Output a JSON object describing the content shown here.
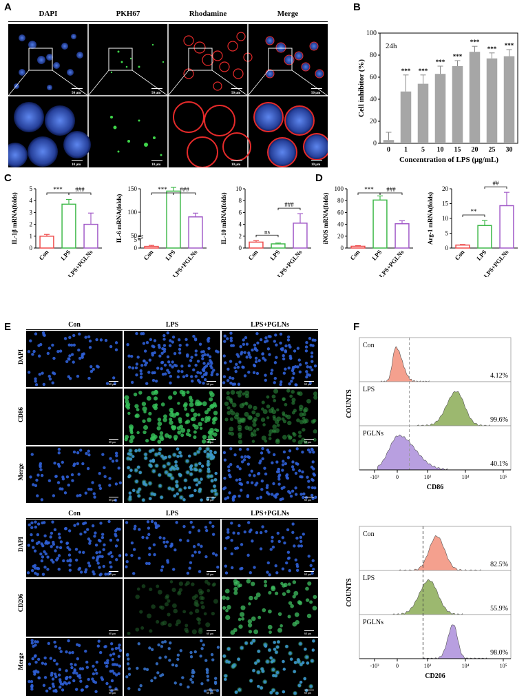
{
  "panels": {
    "A": "A",
    "B": "B",
    "C": "C",
    "D": "D",
    "E": "E",
    "F": "F"
  },
  "panel_a": {
    "columns": [
      "DAPI",
      "PKH67",
      "Rhodamine",
      "Merge"
    ],
    "scale_top": "50 μm",
    "scale_bottom": "10 μm"
  },
  "panel_e": {
    "columns": [
      "Con",
      "LPS",
      "LPS+PGLNs"
    ],
    "rows_top": [
      "DAPI",
      "CD86",
      "Merge"
    ],
    "rows_bottom": [
      "DAPI",
      "CD206",
      "Merge"
    ],
    "scale": "60 μm"
  },
  "panel_f": {
    "ylabel": "COUNTS",
    "cd86": {
      "xlabel": "CD86",
      "samples": [
        {
          "name": "Con",
          "pct": "4.12%",
          "color": "#f4a08e"
        },
        {
          "name": "LPS",
          "pct": "99.6%",
          "color": "#9cb86f"
        },
        {
          "name": "PGLNs",
          "pct": "40.1%",
          "color": "#b89fe0"
        }
      ]
    },
    "cd206": {
      "xlabel": "CD206",
      "samples": [
        {
          "name": "Con",
          "pct": "82.5%",
          "color": "#f4a08e"
        },
        {
          "name": "LPS",
          "pct": "55.9%",
          "color": "#9cb86f"
        },
        {
          "name": "PGLNs",
          "pct": "98.0%",
          "color": "#b89fe0"
        }
      ]
    },
    "ticks": [
      "-10³",
      "0",
      "10³",
      "10⁴",
      "10⁵"
    ]
  },
  "chart_data": [
    {
      "id": "B",
      "type": "bar",
      "annotation": "24h",
      "xlabel": "Concentration of LPS (μg/mL)",
      "ylabel": "Cell inhibitor (%)",
      "ylim": [
        0,
        100
      ],
      "yticks": [
        0,
        20,
        40,
        60,
        80,
        100
      ],
      "categories": [
        "0",
        "1",
        "5",
        "10",
        "15",
        "20",
        "25",
        "30"
      ],
      "values": [
        3,
        47,
        54,
        63,
        70,
        83,
        77,
        79
      ],
      "errors": [
        7,
        15,
        8,
        7,
        5,
        5,
        5,
        6
      ],
      "significance": [
        "",
        "***",
        "***",
        "***",
        "***",
        "***",
        "***",
        "***"
      ],
      "color": "#a6a6a6"
    },
    {
      "id": "C1",
      "type": "bar",
      "ylabel": "IL-1β mRNA(folds)",
      "ylim": [
        0,
        5
      ],
      "yticks": [
        0,
        1,
        2,
        3,
        4,
        5
      ],
      "categories": [
        "Con",
        "LPS",
        "LPS+PGLNs"
      ],
      "values": [
        1.0,
        3.7,
        2.0
      ],
      "errors": [
        0.15,
        0.4,
        0.95
      ],
      "colors": [
        "#ef4c4c",
        "#3fb94a",
        "#a25bc8"
      ],
      "brackets": [
        {
          "from": 0,
          "to": 1,
          "label": "***"
        },
        {
          "from": 1,
          "to": 2,
          "label": "###"
        }
      ]
    },
    {
      "id": "C2",
      "type": "bar",
      "ylabel": "IL-6 mRNA(folds)",
      "broken_axis": true,
      "yticks": [
        0,
        5,
        50,
        100,
        150
      ],
      "categories": [
        "Con",
        "LPS",
        "LPS+PGLNs"
      ],
      "values": [
        1.0,
        145,
        90
      ],
      "errors": [
        0.6,
        8,
        8
      ],
      "colors": [
        "#ef4c4c",
        "#3fb94a",
        "#a25bc8"
      ],
      "brackets": [
        {
          "from": 0,
          "to": 1,
          "label": "***"
        },
        {
          "from": 1,
          "to": 2,
          "label": "###"
        }
      ]
    },
    {
      "id": "C3",
      "type": "bar",
      "ylabel": "IL-10 mRNA(folds)",
      "ylim": [
        0,
        10
      ],
      "yticks": [
        0,
        2,
        4,
        6,
        8,
        10
      ],
      "categories": [
        "Con",
        "LPS",
        "LPS+PGLNs"
      ],
      "values": [
        1.0,
        0.7,
        4.2
      ],
      "errors": [
        0.25,
        0.15,
        1.6
      ],
      "colors": [
        "#ef4c4c",
        "#3fb94a",
        "#a25bc8"
      ],
      "brackets": [
        {
          "from": 0,
          "to": 1,
          "label": "ns"
        },
        {
          "from": 1,
          "to": 2,
          "label": "###"
        }
      ]
    },
    {
      "id": "D1",
      "type": "bar",
      "ylabel": "iNOS mRNA(folds)",
      "ylim": [
        0,
        100
      ],
      "yticks": [
        0,
        20,
        40,
        60,
        80,
        100
      ],
      "categories": [
        "Con",
        "LPS",
        "LPS+PGLNs"
      ],
      "values": [
        3,
        81,
        41
      ],
      "errors": [
        1,
        7,
        5
      ],
      "colors": [
        "#ef4c4c",
        "#3fb94a",
        "#a25bc8"
      ],
      "brackets": [
        {
          "from": 0,
          "to": 1,
          "label": "***"
        },
        {
          "from": 1,
          "to": 2,
          "label": "###"
        }
      ]
    },
    {
      "id": "D2",
      "type": "bar",
      "ylabel": "Arg-1 mRNA(folds)",
      "ylim": [
        0,
        20
      ],
      "yticks": [
        0,
        5,
        10,
        15,
        20
      ],
      "categories": [
        "Con",
        "LPS",
        "LPS+PGLNs"
      ],
      "values": [
        1.0,
        7.6,
        14.3
      ],
      "errors": [
        0.2,
        1.7,
        4.5
      ],
      "colors": [
        "#ef4c4c",
        "#3fb94a",
        "#a25bc8"
      ],
      "brackets": [
        {
          "from": 0,
          "to": 1,
          "label": "**"
        },
        {
          "from": 1,
          "to": 2,
          "label": "##"
        }
      ]
    }
  ]
}
